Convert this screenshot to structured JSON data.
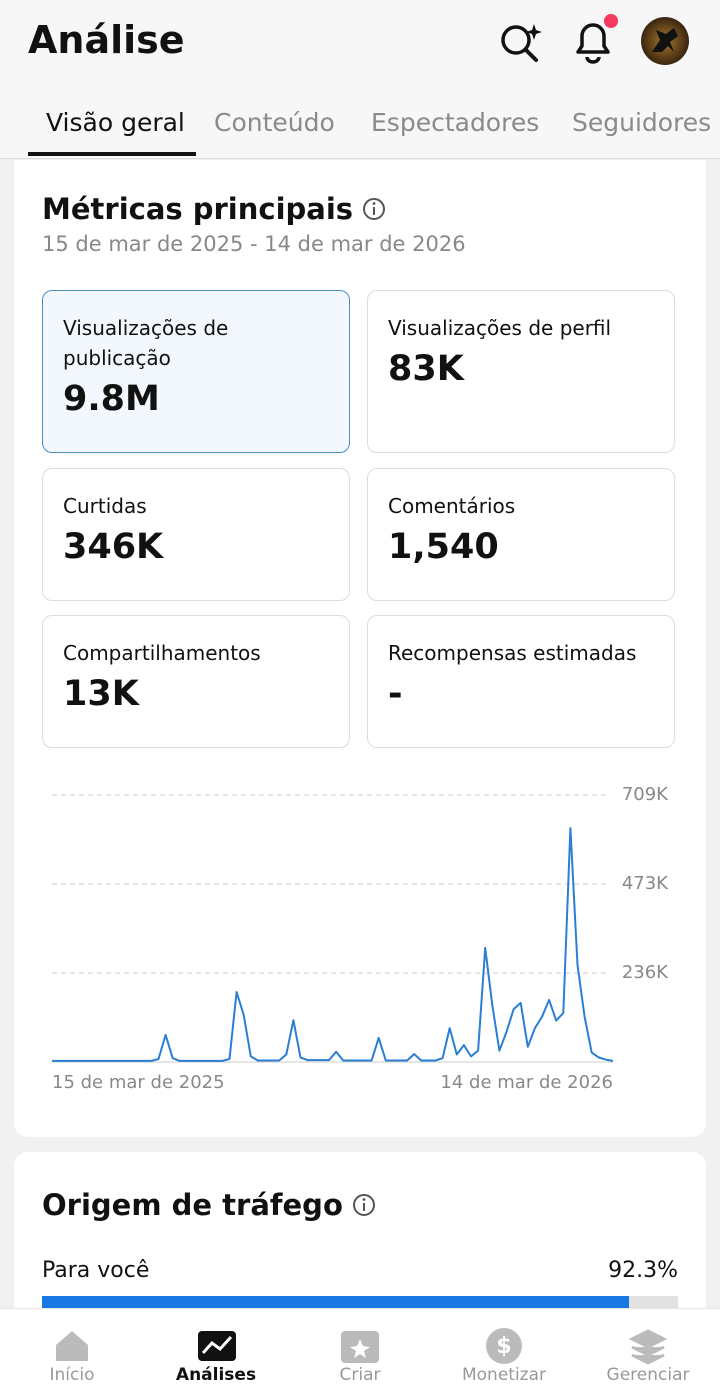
{
  "header": {
    "title": "Análise"
  },
  "tabs": [
    "Visão geral",
    "Conteúdo",
    "Espectadores",
    "Seguidores"
  ],
  "metrics": {
    "title": "Métricas principais",
    "date_range": "15 de mar de 2025 - 14 de mar de 2026",
    "cards": [
      {
        "label": "Visualizações de publicação",
        "value": "9.8M"
      },
      {
        "label": "Visualizações de perfil",
        "value": "83K"
      },
      {
        "label": "Curtidas",
        "value": "346K"
      },
      {
        "label": "Comentários",
        "value": "1,540"
      },
      {
        "label": "Compartilhamentos",
        "value": "13K"
      },
      {
        "label": "Recompensas estimadas",
        "value": "-"
      }
    ]
  },
  "chart_data": {
    "type": "line",
    "color": "#2a7fd4",
    "categories": [
      "15 de mar de 2025",
      null,
      null,
      null,
      null,
      null,
      null,
      null,
      null,
      null,
      null,
      null,
      null,
      null,
      null,
      null,
      null,
      null,
      null,
      null,
      null,
      null,
      null,
      null,
      null,
      null,
      null,
      null,
      null,
      null,
      null,
      null,
      null,
      null,
      null,
      null,
      null,
      null,
      null,
      null,
      null,
      null,
      null,
      null,
      null,
      null,
      null,
      null,
      null,
      null,
      null,
      null,
      null,
      null,
      null,
      null,
      null,
      null,
      null,
      null,
      null,
      null,
      null,
      null,
      null,
      null,
      null,
      null,
      null,
      null,
      null,
      null,
      null,
      null,
      null,
      null,
      null,
      null,
      null,
      "14 de mar de 2026"
    ],
    "values": [
      3000,
      3000,
      3000,
      3000,
      3000,
      3000,
      3000,
      3000,
      3000,
      3000,
      3000,
      3000,
      3000,
      3000,
      3000,
      8000,
      72000,
      10000,
      3000,
      3000,
      3000,
      3000,
      3000,
      3000,
      3000,
      8000,
      186000,
      125000,
      15000,
      4000,
      4000,
      4000,
      4000,
      20000,
      111000,
      12000,
      5000,
      5000,
      5000,
      5000,
      27000,
      4000,
      4000,
      4000,
      4000,
      4000,
      64000,
      4000,
      4000,
      4000,
      4000,
      21000,
      4000,
      4000,
      4000,
      10000,
      90000,
      20000,
      45000,
      15000,
      30000,
      303000,
      151000,
      30000,
      80000,
      140000,
      157000,
      40000,
      90000,
      120000,
      165000,
      110000,
      130000,
      621000,
      258000,
      120000,
      25000,
      12000,
      6000,
      3000
    ],
    "ylim": [
      0,
      709000
    ],
    "yticks": [
      {
        "value": 236000,
        "label": "236K"
      },
      {
        "value": 473000,
        "label": "473K"
      },
      {
        "value": 709000,
        "label": "709K"
      }
    ],
    "grid": true
  },
  "traffic": {
    "title": "Origem de tráfego",
    "items": [
      {
        "name": "Para você",
        "value": 92.3,
        "value_label": "92.3%"
      }
    ]
  },
  "nav": [
    "Início",
    "Análises",
    "Criar",
    "Monetizar",
    "Gerenciar"
  ]
}
